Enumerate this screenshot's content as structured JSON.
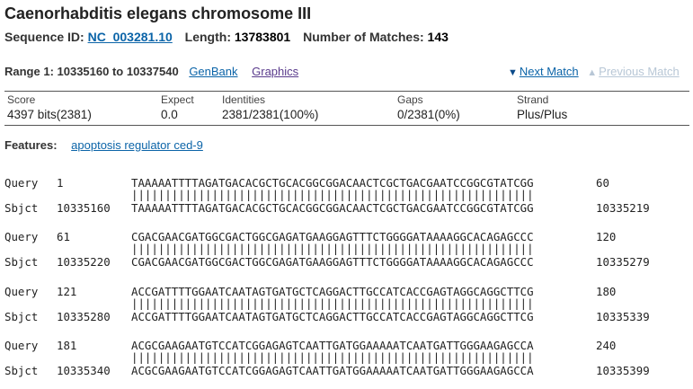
{
  "header": {
    "title": "Caenorhabditis elegans chromosome III",
    "seq_id_label": "Sequence ID:",
    "seq_id": "NC_003281.10",
    "length_label": "Length:",
    "length": "13783801",
    "matches_label": "Number of Matches:",
    "matches": "143"
  },
  "range": {
    "text": "Range 1: 10335160 to 10337540",
    "genbank": "GenBank",
    "graphics": "Graphics",
    "next_match": "Next Match",
    "previous_match": "Previous Match",
    "next_icon": "triangle-down-icon",
    "prev_icon": "triangle-up-icon"
  },
  "score": {
    "score_h": "Score",
    "score_v": "4397 bits(2381)",
    "expect_h": "Expect",
    "expect_v": "0.0",
    "ident_h": "Identities",
    "ident_v": "2381/2381(100%)",
    "gaps_h": "Gaps",
    "gaps_v": "0/2381(0%)",
    "strand_h": "Strand",
    "strand_v": "Plus/Plus"
  },
  "features": {
    "label": "Features:",
    "link": "apoptosis regulator ced-9"
  },
  "alignment": [
    {
      "qlabel": "Query",
      "qstart": "1",
      "qseq": "TAAAAATTTTAGATGACACGCTGCACGGCGGACAACTCGCTGACGAATCCGGCGTATCGG",
      "qend": "60",
      "mid": "||||||||||||||||||||||||||||||||||||||||||||||||||||||||||||",
      "slabel": "Sbjct",
      "sstart": "10335160",
      "sseq": "TAAAAATTTTAGATGACACGCTGCACGGCGGACAACTCGCTGACGAATCCGGCGTATCGG",
      "send": "10335219"
    },
    {
      "qlabel": "Query",
      "qstart": "61",
      "qseq": "CGACGAACGATGGCGACTGGCGAGATGAAGGAGTTTCTGGGGATAAAAGGCACAGAGCCC",
      "qend": "120",
      "mid": "||||||||||||||||||||||||||||||||||||||||||||||||||||||||||||",
      "slabel": "Sbjct",
      "sstart": "10335220",
      "sseq": "CGACGAACGATGGCGACTGGCGAGATGAAGGAGTTTCTGGGGATAAAAGGCACAGAGCCC",
      "send": "10335279"
    },
    {
      "qlabel": "Query",
      "qstart": "121",
      "qseq": "ACCGATTTTGGAATCAATAGTGATGCTCAGGACTTGCCATCACCGAGTAGGCAGGCTTCG",
      "qend": "180",
      "mid": "||||||||||||||||||||||||||||||||||||||||||||||||||||||||||||",
      "slabel": "Sbjct",
      "sstart": "10335280",
      "sseq": "ACCGATTTTGGAATCAATAGTGATGCTCAGGACTTGCCATCACCGAGTAGGCAGGCTTCG",
      "send": "10335339"
    },
    {
      "qlabel": "Query",
      "qstart": "181",
      "qseq": "ACGCGAAGAATGTCCATCGGAGAGTCAATTGATGGAAAAATCAATGATTGGGAAGAGCCA",
      "qend": "240",
      "mid": "||||||||||||||||||||||||||||||||||||||||||||||||||||||||||||",
      "slabel": "Sbjct",
      "sstart": "10335340",
      "sseq": "ACGCGAAGAATGTCCATCGGAGAGTCAATTGATGGAAAAATCAATGATTGGGAAGAGCCA",
      "send": "10335399"
    }
  ]
}
